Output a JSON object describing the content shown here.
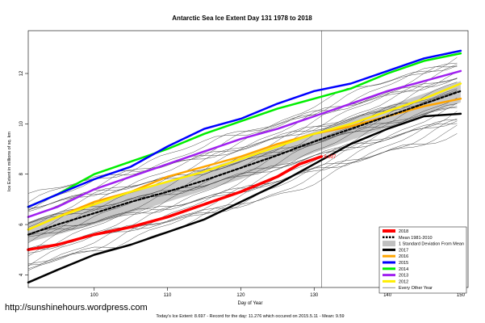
{
  "chart_data": {
    "type": "line",
    "title": "Antarctic Sea Ice Extent Day 131 1978 to 2018",
    "xlabel": "Day of Year",
    "ylabel": "Ice Extent in millions of sq. km",
    "xlim": [
      91,
      151
    ],
    "ylim": [
      3.5,
      13.7
    ],
    "x_ticks": [
      100,
      110,
      120,
      130,
      140,
      150
    ],
    "y_ticks": [
      4,
      6,
      8,
      10,
      12
    ],
    "current_day": 131,
    "current_value_label": "8.697",
    "footer": "Today's Ice Extent: 8.697  - Record for the day: 11.276 which occured on 2015.5.11  - Mean: 9.59",
    "watermark": "http://sunshinehours.wordpress.com",
    "grid": false,
    "legend_position": "bottom-right",
    "legend": [
      {
        "label": "2018",
        "color": "#ff0000",
        "dash": "solid",
        "width": 4
      },
      {
        "label": "Mean 1981-2010",
        "color": "#000000",
        "dash": "dashed",
        "width": 2.5
      },
      {
        "label": "1 Standard Deviation From Mean",
        "color": "#c0c0c0",
        "dash": "solid",
        "width": 7
      },
      {
        "label": "2017",
        "color": "#000000",
        "dash": "solid",
        "width": 3
      },
      {
        "label": "2016",
        "color": "#ffa500",
        "dash": "solid",
        "width": 3
      },
      {
        "label": "2015",
        "color": "#0000ff",
        "dash": "solid",
        "width": 3
      },
      {
        "label": "2014",
        "color": "#00ee00",
        "dash": "solid",
        "width": 3
      },
      {
        "label": "2013",
        "color": "#a020f0",
        "dash": "solid",
        "width": 3
      },
      {
        "label": "2012",
        "color": "#ffee00",
        "dash": "solid",
        "width": 3
      },
      {
        "label": "Every Other Year",
        "color": "#444444",
        "dash": "solid",
        "width": 0.6
      }
    ],
    "sd_band": {
      "x": [
        91,
        95,
        100,
        105,
        110,
        115,
        120,
        125,
        130,
        135,
        140,
        145,
        150
      ],
      "lower": [
        5.3,
        5.6,
        6.0,
        6.45,
        6.9,
        7.35,
        7.8,
        8.3,
        8.85,
        9.35,
        9.85,
        10.35,
        10.85
      ],
      "upper": [
        6.1,
        6.45,
        6.85,
        7.3,
        7.75,
        8.2,
        8.65,
        9.15,
        9.7,
        10.2,
        10.7,
        11.2,
        11.7
      ]
    },
    "series": [
      {
        "name": "Mean 1981-2010",
        "color": "#000000",
        "dash": "dashed",
        "width": 2.2,
        "x": [
          91,
          95,
          100,
          105,
          110,
          115,
          120,
          125,
          130,
          135,
          140,
          145,
          150
        ],
        "y": [
          5.6,
          6.0,
          6.45,
          6.9,
          7.3,
          7.75,
          8.25,
          8.75,
          9.3,
          9.8,
          10.3,
          10.8,
          11.3
        ]
      },
      {
        "name": "2017",
        "color": "#000000",
        "dash": "solid",
        "width": 2.5,
        "x": [
          91,
          95,
          100,
          105,
          110,
          115,
          120,
          125,
          130,
          135,
          140,
          145,
          150
        ],
        "y": [
          3.7,
          4.2,
          4.8,
          5.2,
          5.7,
          6.2,
          6.9,
          7.6,
          8.4,
          9.2,
          9.8,
          10.3,
          10.4
        ]
      },
      {
        "name": "2016",
        "color": "#ffa500",
        "dash": "solid",
        "width": 2.5,
        "x": [
          91,
          95,
          100,
          105,
          110,
          115,
          120,
          125,
          130,
          135,
          140,
          145,
          150
        ],
        "y": [
          5.8,
          6.3,
          6.9,
          7.3,
          7.9,
          8.3,
          8.7,
          9.2,
          9.6,
          9.9,
          10.3,
          10.7,
          11.0
        ]
      },
      {
        "name": "2015",
        "color": "#0000ff",
        "dash": "solid",
        "width": 2.5,
        "x": [
          91,
          95,
          100,
          105,
          110,
          115,
          120,
          125,
          130,
          135,
          140,
          145,
          150
        ],
        "y": [
          6.7,
          7.2,
          7.8,
          8.3,
          9.1,
          9.8,
          10.2,
          10.8,
          11.3,
          11.6,
          12.1,
          12.6,
          12.9
        ]
      },
      {
        "name": "2014",
        "color": "#00ee00",
        "dash": "solid",
        "width": 2.5,
        "x": [
          91,
          95,
          100,
          105,
          110,
          115,
          120,
          125,
          130,
          135,
          140,
          145,
          150
        ],
        "y": [
          6.7,
          7.2,
          8.0,
          8.5,
          9.0,
          9.6,
          10.1,
          10.6,
          11.0,
          11.4,
          12.0,
          12.5,
          12.8
        ]
      },
      {
        "name": "2013",
        "color": "#a020f0",
        "dash": "solid",
        "width": 2.5,
        "x": [
          91,
          95,
          100,
          105,
          110,
          115,
          120,
          125,
          130,
          135,
          140,
          145,
          150
        ],
        "y": [
          6.3,
          6.7,
          7.4,
          7.9,
          8.4,
          8.9,
          9.4,
          9.8,
          10.3,
          10.8,
          11.3,
          11.7,
          12.1
        ]
      },
      {
        "name": "2012",
        "color": "#ffee00",
        "dash": "solid",
        "width": 2.5,
        "x": [
          91,
          95,
          100,
          105,
          110,
          115,
          120,
          125,
          130,
          135,
          140,
          145,
          150
        ],
        "y": [
          5.8,
          6.3,
          6.8,
          7.3,
          7.7,
          8.1,
          8.6,
          9.1,
          9.6,
          10.0,
          10.5,
          11.0,
          11.6
        ]
      },
      {
        "name": "2018",
        "color": "#ff0000",
        "dash": "solid",
        "width": 3.5,
        "x": [
          91,
          95,
          100,
          105,
          110,
          115,
          120,
          125,
          128,
          131
        ],
        "y": [
          5.0,
          5.2,
          5.6,
          5.9,
          6.3,
          6.8,
          7.3,
          7.9,
          8.4,
          8.7
        ]
      }
    ]
  }
}
